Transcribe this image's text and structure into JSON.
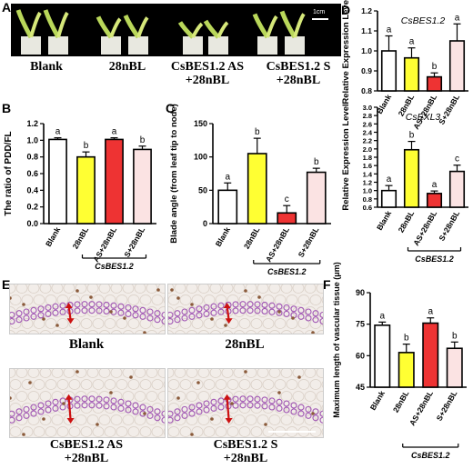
{
  "panel_A": {
    "letter": "A",
    "scale_label": "1cm",
    "captions": [
      "Blank",
      "28nBL",
      "CsBES1.2 AS\n+28nBL",
      "CsBES1.2 S\n+28nBL"
    ]
  },
  "panel_E": {
    "letter": "E",
    "captions": [
      "Blank",
      "28nBL",
      "CsBES1.2 AS\n+28nBL",
      "CsBES1.2 S\n+28nBL"
    ]
  },
  "colors": {
    "blank": "#ffffff",
    "bl": "#ffff33",
    "as": "#ee3333",
    "s": "#fbe3e3",
    "arrow": "#cc1111"
  },
  "chart_data": [
    {
      "id": "B",
      "letter": "B",
      "type": "bar",
      "categories": [
        "Blank",
        "28nBL",
        "AS+28nBL",
        "S+28nBL"
      ],
      "values": [
        1.01,
        0.8,
        1.01,
        0.89
      ],
      "errors": [
        0.02,
        0.06,
        0.02,
        0.04
      ],
      "sig": [
        "a",
        "b",
        "a",
        "b"
      ],
      "ylabel": "The ratio of PDD/FL",
      "ylim": [
        0.0,
        1.2
      ],
      "yticks": [
        "0.0",
        "0.2",
        "0.4",
        "0.6",
        "0.8",
        "1.0",
        "1.2"
      ],
      "group_label": "CsBES1.2"
    },
    {
      "id": "C",
      "letter": "C",
      "type": "bar",
      "categories": [
        "Blank",
        "28nBL",
        "AS+28nBL",
        "S+28nBL"
      ],
      "values": [
        50,
        105,
        16,
        77
      ],
      "errors": [
        11,
        23,
        11,
        6
      ],
      "sig": [
        "a",
        "b",
        "c",
        "b"
      ],
      "ylabel": "Blade angle (from leaf tip to node)",
      "ylim": [
        0,
        150
      ],
      "yticks": [
        "0",
        "50",
        "100",
        "150"
      ],
      "group_label": "CsBES1.2"
    },
    {
      "id": "D1",
      "letter": "D",
      "type": "bar",
      "title": "CsBES1.2",
      "categories": [
        "Blank",
        "28nBL",
        "AS+28nBL",
        "S+28nBL"
      ],
      "values": [
        1.0,
        0.965,
        0.87,
        1.05
      ],
      "errors": [
        0.075,
        0.05,
        0.02,
        0.085
      ],
      "sig": [
        "a",
        "a",
        "b",
        "a"
      ],
      "ylabel": "Relative Expression Level",
      "ylim": [
        0.8,
        1.2
      ],
      "yticks": [
        "0.8",
        "0.9",
        "1.0",
        "1.1",
        "1.2"
      ]
    },
    {
      "id": "D2",
      "type": "bar",
      "title": "CsEXL3",
      "categories": [
        "Blank",
        "28nBL",
        "AS+28nBL",
        "S+28nBL"
      ],
      "values": [
        1.0,
        1.98,
        0.93,
        1.46
      ],
      "errors": [
        0.12,
        0.2,
        0.06,
        0.15
      ],
      "sig": [
        "a",
        "b",
        "a",
        "c"
      ],
      "ylabel": "Relative Expression Level",
      "ylim": [
        0.6,
        3.0
      ],
      "yticks": [
        "0.6",
        "0.8",
        "1.0",
        "1.2",
        "1.4",
        "1.6",
        "1.8",
        "2.0",
        "2.2",
        "2.4",
        "2.6",
        "2.8",
        "3.0"
      ],
      "group_label": "CsBES1.2"
    },
    {
      "id": "F",
      "letter": "F",
      "type": "bar",
      "categories": [
        "Blank",
        "28nBL",
        "AS+28nBL",
        "S+28nBL"
      ],
      "values": [
        74.5,
        61.5,
        75.5,
        63.5
      ],
      "errors": [
        1.5,
        4,
        2.5,
        3
      ],
      "sig": [
        "a",
        "b",
        "a",
        "b"
      ],
      "ylabel": "Maximum length of vascular tissue (μm)",
      "ylim": [
        45,
        90
      ],
      "yticks": [
        "45",
        "60",
        "75",
        "90"
      ],
      "group_label": "CsBES1.2"
    }
  ]
}
